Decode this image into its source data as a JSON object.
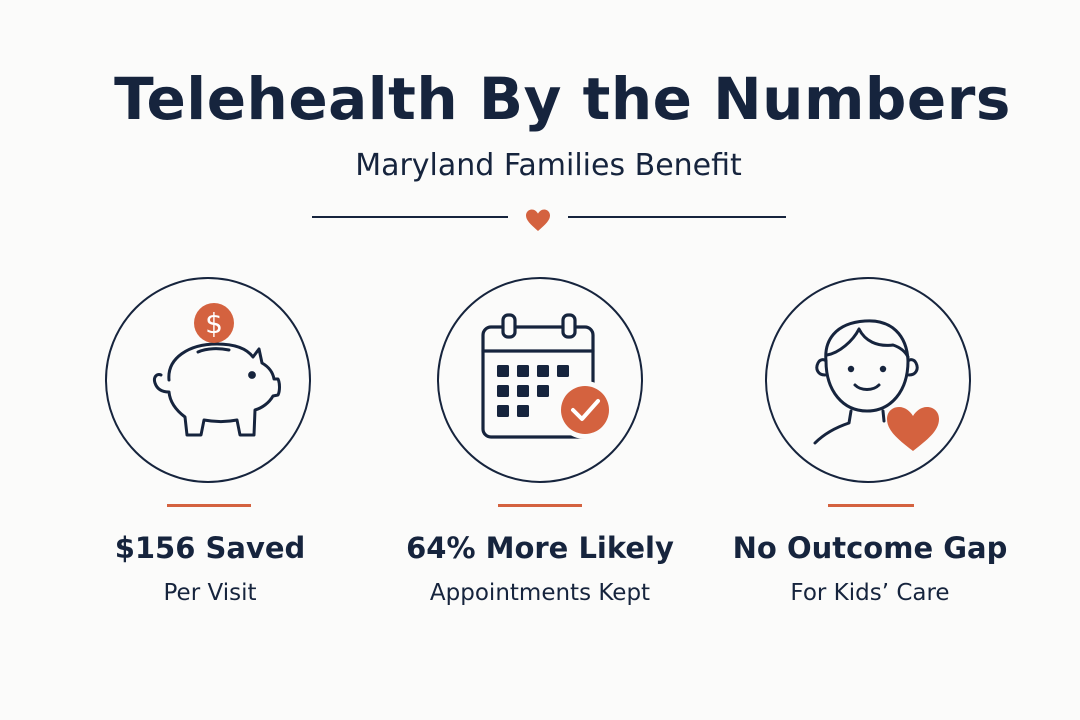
{
  "header": {
    "title": "Telehealth By the Numbers",
    "subtitle": "Maryland Families Benefit"
  },
  "colors": {
    "navy": "#16243d",
    "accent": "#d4623f",
    "background": "#fbfbfa"
  },
  "stats": [
    {
      "icon": "piggy-bank-dollar-icon",
      "value": "$156 Saved",
      "label": "Per Visit"
    },
    {
      "icon": "calendar-check-icon",
      "value": "64% More Likely",
      "label": "Appointments Kept"
    },
    {
      "icon": "child-heart-icon",
      "value": "No Outcome Gap",
      "label": "For Kids’ Care"
    }
  ],
  "piggy_coin_symbol": "$"
}
